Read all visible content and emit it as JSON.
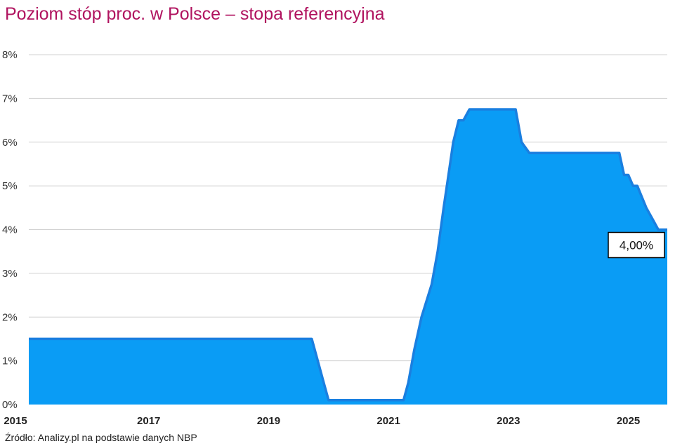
{
  "chart_data": {
    "type": "area",
    "title": "Poziom stóp proc. w Polsce – stopa referencyjna",
    "source": "Źródło: Analizy.pl na podstawie danych NBP",
    "color": "#0a9cf5",
    "line_color": "#1a7fe0",
    "grid": true,
    "xlim": [
      2015.0,
      2025.65
    ],
    "ylim": [
      0,
      8
    ],
    "y_ticks": [
      "0%",
      "1%",
      "2%",
      "3%",
      "4%",
      "5%",
      "6%",
      "7%",
      "8%"
    ],
    "x_ticks": [
      "2015",
      "2017",
      "2019",
      "2021",
      "2023",
      "2025"
    ],
    "annotation": {
      "label": "4,00%",
      "x": 2025.65,
      "y": 4.0
    },
    "series": [
      {
        "x": [
          2015.0,
          2019.72,
          2019.82,
          2019.92,
          2020.0,
          2021.25,
          2021.33,
          2021.43,
          2021.55,
          2021.72,
          2021.82,
          2021.92,
          2022.0,
          2022.08,
          2022.17,
          2022.25,
          2022.35,
          2023.12,
          2023.22,
          2023.35,
          2024.85,
          2024.93,
          2025.0,
          2025.08,
          2025.15,
          2025.3,
          2025.4,
          2025.5,
          2025.65
        ],
        "y": [
          1.5,
          1.5,
          1.0,
          0.5,
          0.1,
          0.1,
          0.5,
          1.25,
          2.0,
          2.75,
          3.5,
          4.5,
          5.25,
          6.0,
          6.5,
          6.5,
          6.75,
          6.75,
          6.0,
          5.75,
          5.75,
          5.25,
          5.25,
          5.0,
          5.0,
          4.5,
          4.25,
          4.0,
          4.0
        ]
      }
    ]
  }
}
